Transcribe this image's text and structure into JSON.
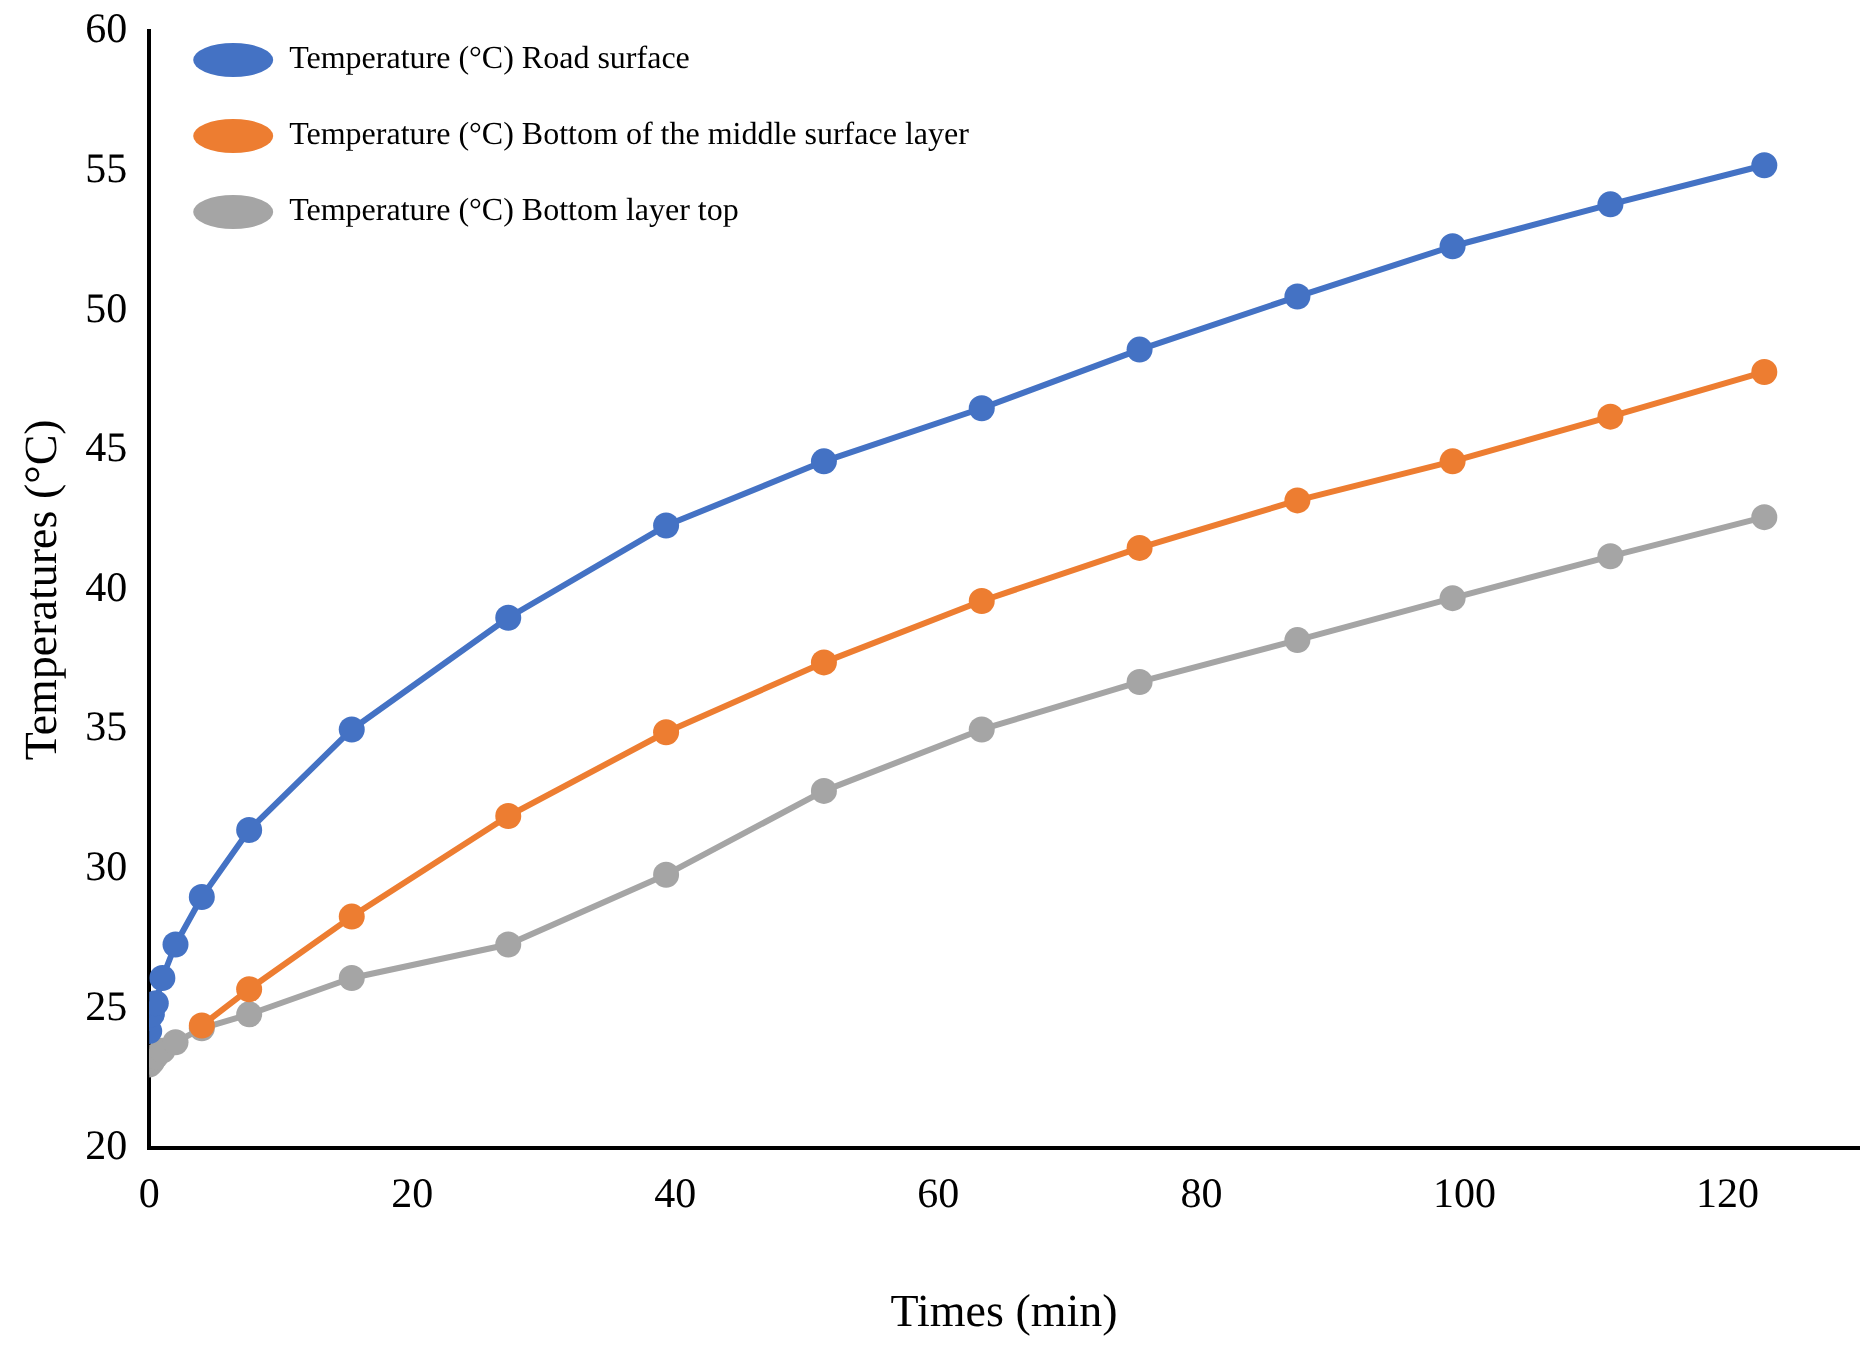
{
  "chart_data": {
    "type": "line",
    "xlabel": "Times (min)",
    "ylabel": "Temperatures (°C)",
    "xlim": [
      0,
      130
    ],
    "xticks": [
      0,
      20,
      40,
      60,
      80,
      100,
      120
    ],
    "ylim": [
      20,
      60
    ],
    "yticks": [
      20,
      25,
      30,
      35,
      40,
      45,
      50,
      55,
      60
    ],
    "grid": false,
    "legend": "top left",
    "marker": "circle",
    "line_style": "solid",
    "x": [
      0,
      0.2,
      0.5,
      1,
      2,
      4,
      7.6,
      15.4,
      27.3,
      39.3,
      51.3,
      63.3,
      75.3,
      87.3,
      99.1,
      111.1,
      122.8
    ],
    "series": [
      {
        "name": "Temperature (°C) Road surface",
        "color": "#4472c4",
        "values": [
          24.2,
          24.8,
          25.2,
          26.1,
          27.3,
          29.0,
          31.4,
          35.0,
          39.0,
          42.3,
          44.6,
          46.5,
          48.6,
          50.5,
          52.3,
          53.8,
          55.2
        ]
      },
      {
        "name": "Temperature (°C) Bottom of the middle surface layer",
        "color": "#ed7d31",
        "values": [
          null,
          null,
          null,
          null,
          null,
          24.4,
          25.7,
          28.3,
          31.9,
          34.9,
          37.4,
          39.6,
          41.5,
          43.2,
          44.6,
          46.2,
          47.8
        ]
      },
      {
        "name": "Temperature (°C) Bottom layer top",
        "color": "#a5a5a5",
        "values": [
          23.0,
          23.1,
          23.3,
          23.5,
          23.8,
          24.3,
          24.8,
          26.1,
          27.3,
          29.8,
          32.8,
          35.0,
          36.7,
          38.2,
          39.7,
          41.2,
          42.6
        ]
      }
    ]
  }
}
